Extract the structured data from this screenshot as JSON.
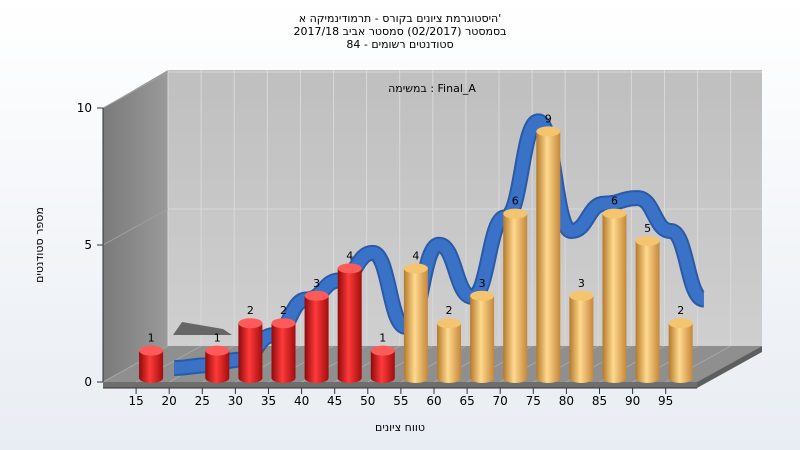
{
  "chart_data": {
    "type": "bar",
    "title_lines": [
      "היסטוגרמת ציונים בקורס - תרמודינמיקה א'",
      "בסמסטר  (02/2017)  סמסטר אביב 2017/18",
      "סטודנטים רשומים - 84"
    ],
    "subtitle": "במשימה : Final_A",
    "xlabel": "טווח ציונים",
    "ylabel": "מספר סטודנטים",
    "categories": [
      "15",
      "20",
      "25",
      "30",
      "35",
      "40",
      "45",
      "50",
      "55",
      "60",
      "65",
      "70",
      "75",
      "80",
      "85",
      "90",
      "95"
    ],
    "ylim": [
      0,
      10
    ],
    "yticks": [
      "0",
      "5",
      "10"
    ],
    "bars": [
      {
        "x": 15,
        "value": 1,
        "color": "red"
      },
      {
        "x": 25,
        "value": 1,
        "color": "red"
      },
      {
        "x": 30,
        "value": 2,
        "color": "red"
      },
      {
        "x": 35,
        "value": 2,
        "color": "red"
      },
      {
        "x": 40,
        "value": 3,
        "color": "red"
      },
      {
        "x": 45,
        "value": 4,
        "color": "red"
      },
      {
        "x": 50,
        "value": 1,
        "color": "red"
      },
      {
        "x": 55,
        "value": 4,
        "color": "gold"
      },
      {
        "x": 60,
        "value": 2,
        "color": "gold"
      },
      {
        "x": 65,
        "value": 3,
        "color": "gold"
      },
      {
        "x": 70,
        "value": 6,
        "color": "gold"
      },
      {
        "x": 75,
        "value": 9,
        "color": "gold"
      },
      {
        "x": 80,
        "value": 3,
        "color": "gold"
      },
      {
        "x": 85,
        "value": 6,
        "color": "gold"
      },
      {
        "x": 90,
        "value": 5,
        "color": "gold"
      },
      {
        "x": 95,
        "value": 2,
        "color": "gold"
      }
    ],
    "trend_line": {
      "x": [
        20,
        25,
        30,
        35,
        40,
        45,
        50,
        55,
        60,
        65,
        70,
        75,
        80,
        85,
        90,
        95,
        100
      ],
      "y": [
        0,
        0.1,
        0.3,
        1.2,
        2.5,
        3.2,
        4.2,
        1.5,
        4.5,
        2.6,
        5.5,
        9.0,
        5.0,
        6.0,
        6.2,
        5.0,
        2.5
      ]
    },
    "colors": {
      "red": "#d81c1c",
      "gold": "#e0a94a",
      "trend": "#3a72c8",
      "floor": "#8a8a8a",
      "back_wall": "#c4c4c4",
      "side_wall": "#8e8e8e"
    }
  }
}
